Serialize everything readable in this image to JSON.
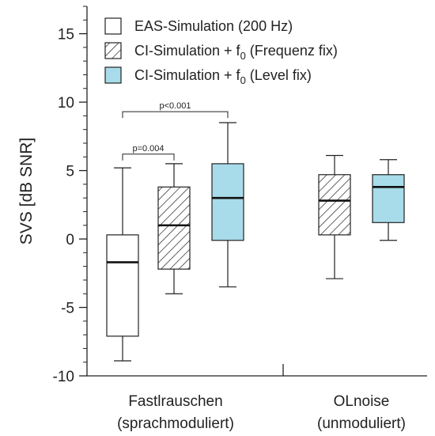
{
  "chart_data": {
    "type": "boxplot",
    "ylabel": "SVS [dB SNR]",
    "ylim": [
      -10,
      17
    ],
    "yticks_major": [
      -10,
      -5,
      0,
      5,
      10,
      15
    ],
    "ytick_labels": [
      "-10",
      "-5",
      "0",
      "5",
      "10",
      "15"
    ],
    "yticks_minor_step": 1,
    "grid": false,
    "legend_position": "top-right",
    "colors": {
      "box_fill_level": "#a8dcea",
      "stroke": "#222222",
      "plain_fill": "#ffffff"
    },
    "series": [
      {
        "name_main": "EAS-Simulation (200 Hz)",
        "name_sub": "",
        "name_suffix": "",
        "fill": "plain"
      },
      {
        "name_main": "CI-Simulation + f",
        "name_sub": "0",
        "name_suffix": " (Frequenz fix)",
        "fill": "hatch"
      },
      {
        "name_main": "CI-Simulation + f",
        "name_sub": "0",
        "name_suffix": " (Level fix)",
        "fill": "level"
      }
    ],
    "groups": [
      {
        "label_line1": "Fastlrauschen",
        "label_line2": "(sprachmoduliert)",
        "boxes": [
          {
            "series": 0,
            "whisker_low": -8.9,
            "q1": -7.1,
            "median": -1.7,
            "q3": 0.3,
            "whisker_high": 5.2
          },
          {
            "series": 1,
            "whisker_low": -4.0,
            "q1": -2.2,
            "median": 1.0,
            "q3": 3.8,
            "whisker_high": 5.5
          },
          {
            "series": 2,
            "whisker_low": -3.5,
            "q1": -0.1,
            "median": 3.0,
            "q3": 5.5,
            "whisker_high": 8.5
          }
        ]
      },
      {
        "label_line1": "OLnoise",
        "label_line2": "(unmoduliert)",
        "boxes": [
          {
            "series": 1,
            "whisker_low": -2.9,
            "q1": 0.3,
            "median": 2.8,
            "q3": 4.7,
            "whisker_high": 6.1
          },
          {
            "series": 2,
            "whisker_low": -0.1,
            "q1": 1.2,
            "median": 3.8,
            "q3": 4.7,
            "whisker_high": 5.8
          }
        ]
      }
    ],
    "annotations": [
      {
        "text": "p=0.004",
        "from_series": 0,
        "to_series": 1,
        "group": 0,
        "y": 6.2
      },
      {
        "text": "p<0.001",
        "from_series": 0,
        "to_series": 2,
        "group": 0,
        "y": 9.3
      }
    ]
  }
}
